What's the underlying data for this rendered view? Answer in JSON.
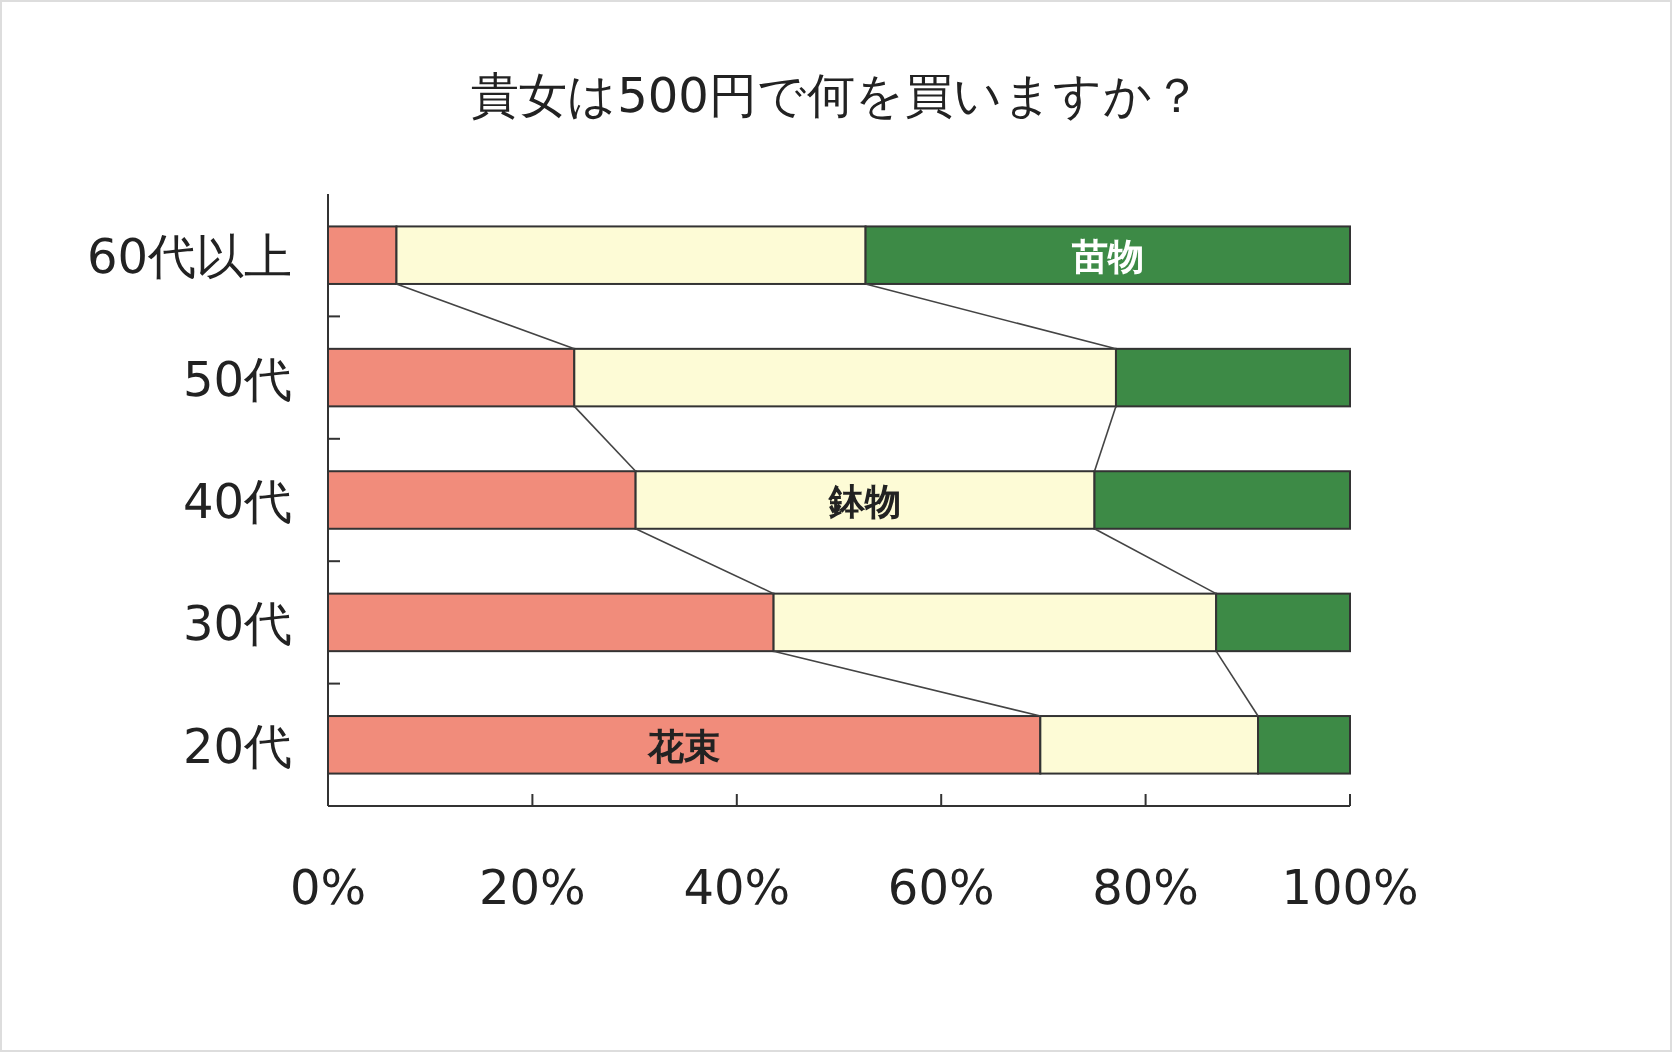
{
  "chart_data": {
    "type": "bar",
    "orientation": "horizontal",
    "stacked": true,
    "title": "貴女は500円で何を買いますか？",
    "categories": [
      "60代以上",
      "50代",
      "40代",
      "30代",
      "20代"
    ],
    "series": [
      {
        "name": "花束",
        "color": "#f18c7b",
        "values": [
          6.7,
          24.1,
          30.1,
          43.6,
          69.7
        ]
      },
      {
        "name": "鉢物",
        "color": "#fdfbd6",
        "values": [
          45.9,
          53.0,
          44.9,
          43.3,
          21.3
        ]
      },
      {
        "name": "苗物",
        "color": "#3d8a46",
        "values": [
          47.4,
          22.9,
          25.0,
          13.1,
          9.0
        ]
      }
    ],
    "xlim": [
      0,
      100
    ],
    "xticks": [
      {
        "value": 0,
        "label": "0%"
      },
      {
        "value": 20,
        "label": "20%"
      },
      {
        "value": 40,
        "label": "40%"
      },
      {
        "value": 60,
        "label": "60%"
      },
      {
        "value": 80,
        "label": "80%"
      },
      {
        "value": 100,
        "label": "100%"
      }
    ],
    "grid": false
  }
}
